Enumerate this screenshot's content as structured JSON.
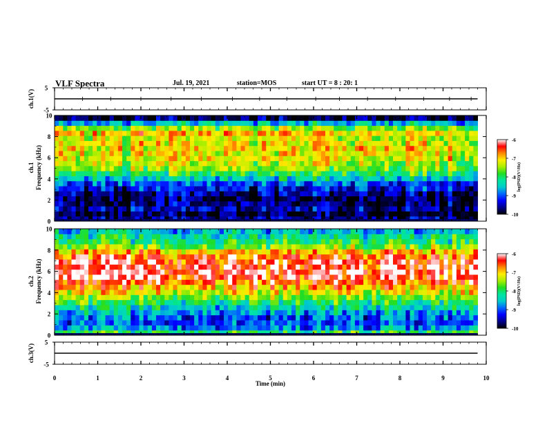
{
  "header": {
    "title": "VLF Spectra",
    "date": "Jul. 19, 2021",
    "station": "station=MOS",
    "start": "start UT =  8 : 20: 1"
  },
  "colors": {
    "colormap": [
      "#000000",
      "#00008c",
      "#0000ff",
      "#0066ff",
      "#00cccc",
      "#00e6a0",
      "#22dd22",
      "#aaee00",
      "#ffee00",
      "#ff8800",
      "#ff0000",
      "#ffffff"
    ]
  },
  "chart_data": [
    {
      "type": "line",
      "id": "ch1",
      "ylabel": "ch.1(V)",
      "ylim": [
        -5,
        5
      ],
      "yticks": [
        "5",
        "-5"
      ],
      "xlim": [
        0,
        10
      ],
      "series": [
        {
          "x": [
            0,
            9.8
          ],
          "y": [
            0,
            0
          ]
        }
      ],
      "spike_times": [
        0.65,
        1.3,
        2.0,
        2.7,
        3.4,
        4.12,
        4.75,
        5.38,
        6.05,
        6.6,
        7.25,
        7.9,
        8.55,
        9.15,
        9.65
      ]
    },
    {
      "type": "heatmap",
      "id": "ch1-spec",
      "ylabel": "ch.1 Frequency (kHz)",
      "ylim": [
        0,
        10
      ],
      "yticks": [
        "0",
        "2",
        "4",
        "6",
        "8",
        "10"
      ],
      "xlim": [
        0,
        9.8
      ],
      "freq_kHz": [
        0,
        0.5,
        1,
        1.5,
        2,
        2.5,
        3,
        3.5,
        4,
        4.5,
        5,
        5.5,
        6,
        6.5,
        7,
        7.5,
        8,
        8.5,
        9,
        9.5,
        10
      ],
      "log_psd": [
        -9.6,
        -9.9,
        -9.5,
        -9.7,
        -9.8,
        -9.6,
        -9.3,
        -9.0,
        -8.5,
        -8.0,
        -7.6,
        -7.4,
        -7.2,
        -7.2,
        -7.1,
        -7.2,
        -7.3,
        -7.0,
        -7.5,
        -8.6,
        -9.8
      ],
      "colorbar": {
        "label": "log(PSD)(V²/Hz)",
        "range": [
          -10,
          -6
        ],
        "ticks": [
          "-6",
          "-7",
          "-8",
          "-9",
          "-10"
        ]
      }
    },
    {
      "type": "heatmap",
      "id": "ch2-spec",
      "ylabel": "ch.2 Frequency (kHz)",
      "ylim": [
        0,
        10
      ],
      "yticks": [
        "0",
        "2",
        "4",
        "6",
        "8",
        "10"
      ],
      "xlim": [
        0,
        9.8
      ],
      "freq_kHz": [
        0,
        0.5,
        1,
        1.5,
        2,
        2.5,
        3,
        3.5,
        4,
        4.5,
        5,
        5.5,
        6,
        6.5,
        7,
        7.5,
        8,
        8.5,
        9,
        9.5,
        10
      ],
      "log_psd": [
        -8.0,
        -8.8,
        -9.1,
        -9.0,
        -8.7,
        -8.4,
        -8.0,
        -7.6,
        -7.2,
        -6.9,
        -6.5,
        -6.3,
        -6.2,
        -6.3,
        -6.4,
        -6.6,
        -7.0,
        -7.6,
        -8.0,
        -8.2,
        -8.6
      ],
      "colorbar": {
        "label": "log(PSD)(V²/Hz)",
        "range": [
          -10,
          -6
        ],
        "ticks": [
          "-6",
          "-7",
          "-8",
          "-9",
          "-10"
        ]
      }
    },
    {
      "type": "line",
      "id": "ch3",
      "ylabel": "ch.3(V)",
      "ylim": [
        -5,
        5
      ],
      "yticks": [
        "5",
        "-5"
      ],
      "xlim": [
        0,
        10
      ],
      "series": [
        {
          "x": [
            0,
            9.8
          ],
          "y": [
            0,
            0
          ]
        }
      ]
    }
  ],
  "xaxis": {
    "label": "Time (min)",
    "ticks": [
      "0",
      "1",
      "2",
      "3",
      "4",
      "5",
      "6",
      "7",
      "8",
      "9",
      "10"
    ]
  }
}
